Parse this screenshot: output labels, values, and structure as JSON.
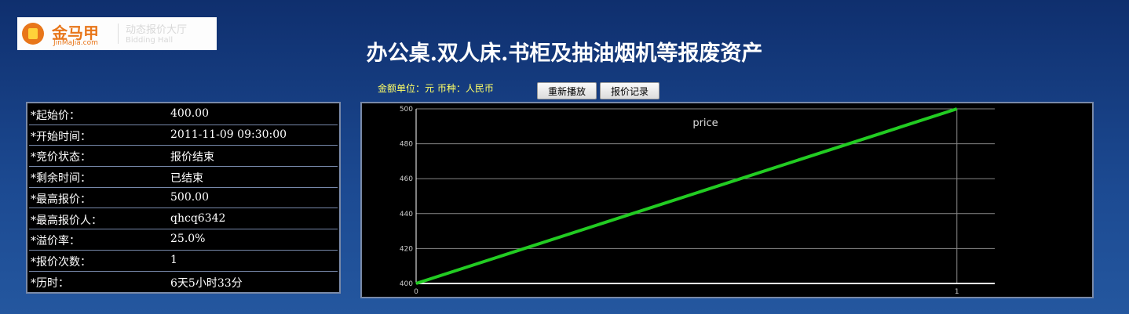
{
  "header": {
    "logo_name": "金马甲",
    "logo_site": "JinMaJia.com",
    "logo_hall": "动态报价大厅",
    "logo_hall_en": "Bidding Hall",
    "title": "办公桌.双人床.书柜及抽油烟机等报废资产"
  },
  "toolbar": {
    "unit_note": "金额单位：元  币种：人民币",
    "buttons": [
      "重新播放",
      "报价记录"
    ]
  },
  "table": {
    "rows": [
      [
        "*起始价：",
        "400.00"
      ],
      [
        "*开始时间：",
        "2011-11-09 09:30:00"
      ],
      [
        "*竞价状态：",
        "报价结束"
      ],
      [
        "*剩余时间：",
        "已结束"
      ],
      [
        "*最高报价：",
        "500.00"
      ],
      [
        "*最高报价人：",
        "qhcq6342"
      ],
      [
        "*溢价率：",
        "25.0%"
      ],
      [
        "*报价次数：",
        "1"
      ],
      [
        "*历时：",
        "6天5小时33分"
      ]
    ]
  },
  "chart_data": {
    "type": "line",
    "x": [
      0,
      1
    ],
    "series": [
      {
        "name": "price",
        "color": "#22cc22",
        "values": [
          400,
          500
        ]
      }
    ],
    "xlim": [
      0,
      1.07
    ],
    "xticks": [
      0,
      1
    ],
    "ylim": [
      400,
      500
    ],
    "yticks": [
      400,
      420,
      440,
      460,
      480,
      500
    ],
    "grid": true
  }
}
